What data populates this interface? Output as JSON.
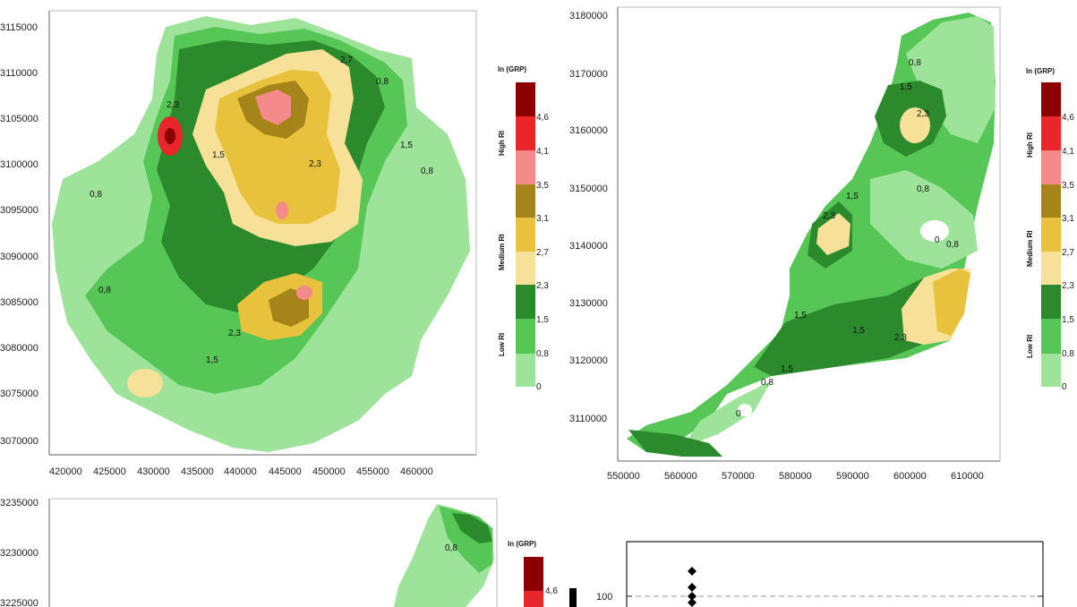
{
  "chart_data": [
    {
      "type": "heatmap",
      "legend": {
        "title": "ln (GRP)",
        "breaks": [
          "0",
          "0,8",
          "1,5",
          "2,3",
          "2,7",
          "3,1",
          "3,5",
          "4,1",
          "4,6"
        ],
        "classes": [
          "Low RI",
          "Medium RI",
          "High RI"
        ]
      },
      "x_ticks": [
        "420000",
        "425000",
        "430000",
        "435000",
        "440000",
        "445000",
        "450000",
        "455000",
        "460000"
      ],
      "y_ticks": [
        "3070000",
        "3075000",
        "3080000",
        "3085000",
        "3090000",
        "3095000",
        "3100000",
        "3105000",
        "3110000",
        "3115000"
      ],
      "contour_labels": [
        "0,8",
        "1,5",
        "2,3",
        "2,7"
      ]
    },
    {
      "type": "heatmap",
      "legend": {
        "title": "ln (GRP)",
        "breaks": [
          "0",
          "0,8",
          "1,5",
          "2,3",
          "2,7",
          "3,1",
          "3,5",
          "4,1",
          "4,6"
        ],
        "classes": [
          "Low RI",
          "Medium RI",
          "High RI"
        ]
      },
      "x_ticks": [
        "550000",
        "560000",
        "570000",
        "580000",
        "590000",
        "600000",
        "610000"
      ],
      "y_ticks": [
        "3110000",
        "3120000",
        "3130000",
        "3140000",
        "3150000",
        "3160000",
        "3170000",
        "3180000"
      ],
      "contour_labels": [
        "0",
        "0,8",
        "1,5",
        "2,3"
      ]
    },
    {
      "type": "heatmap",
      "legend": {
        "title": "ln (GRP)",
        "breaks": [
          "4,6"
        ]
      },
      "y_ticks": [
        "3225000",
        "3230000",
        "3235000"
      ],
      "contour_labels": [
        "0,8"
      ]
    },
    {
      "type": "scatter",
      "y_ticks": [
        "100"
      ],
      "marker": "diamond"
    }
  ],
  "colors": {
    "c0": "#9ee39a",
    "c1": "#56c656",
    "c2": "#2b8a2b",
    "c3": "#f7e199",
    "c4": "#e8c23c",
    "c5": "#a5841a",
    "c6": "#f58a8a",
    "c7": "#e8262c",
    "c8": "#8b0000"
  }
}
